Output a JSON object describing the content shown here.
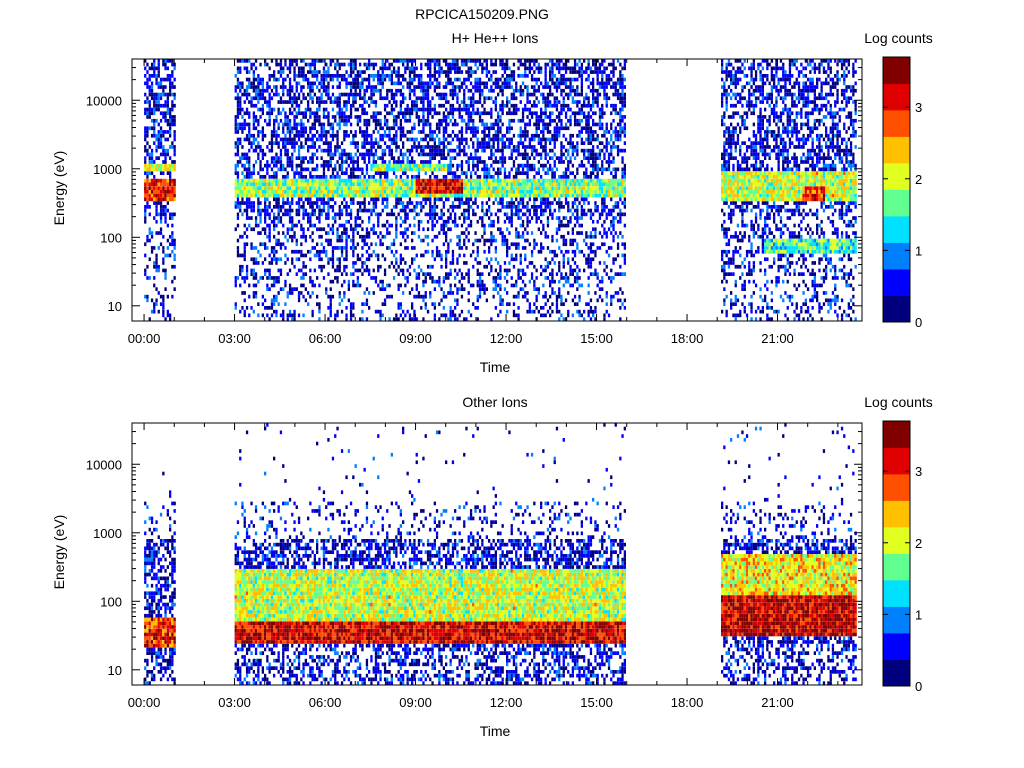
{
  "figure_title": "RPCICA150209.PNG",
  "colors": {
    "colormap": [
      "#00007f",
      "#0000ff",
      "#0080ff",
      "#00e0ff",
      "#60ff90",
      "#e0ff20",
      "#ffc000",
      "#ff5000",
      "#e00000",
      "#800000"
    ]
  },
  "chart_data": [
    {
      "type": "heatmap",
      "title": "H+ He++ Ions",
      "xlabel": "Time",
      "ylabel": "Energy (eV)",
      "x_ticks": [
        "00:00",
        "03:00",
        "06:00",
        "09:00",
        "12:00",
        "15:00",
        "18:00",
        "21:00"
      ],
      "x_range_hours": [
        -0.4,
        23.8
      ],
      "y_scale": "log",
      "y_ticks": [
        "10",
        "100",
        "1000",
        "10000"
      ],
      "y_range": [
        6,
        40000
      ],
      "colorbar": {
        "label": "Log counts",
        "ticks": [
          "0",
          "1",
          "2",
          "3"
        ],
        "range": [
          0,
          3.7
        ]
      },
      "data_gaps_hours": [
        [
          1.0,
          3.0
        ],
        [
          15.9,
          19.1
        ]
      ],
      "features": [
        {
          "name": "dense band",
          "time_hours": [
            0.0,
            1.0
          ],
          "energy_ev": [
            350,
            700
          ],
          "level": 3.0
        },
        {
          "name": "dense band",
          "time_hours": [
            0.0,
            1.0
          ],
          "energy_ev": [
            900,
            1200
          ],
          "level": 2.0
        },
        {
          "name": "main band",
          "time_hours": [
            3.0,
            15.9
          ],
          "energy_ev": [
            400,
            700
          ],
          "level": 1.8
        },
        {
          "name": "main band peak",
          "time_hours": [
            9.0,
            10.5
          ],
          "energy_ev": [
            450,
            700
          ],
          "level": 3.2
        },
        {
          "name": "upper band",
          "time_hours": [
            7.5,
            10.0
          ],
          "energy_ev": [
            900,
            1200
          ],
          "level": 1.8
        },
        {
          "name": "main band",
          "time_hours": [
            19.1,
            23.6
          ],
          "energy_ev": [
            350,
            900
          ],
          "level": 2.0
        },
        {
          "name": "main band peak",
          "time_hours": [
            21.8,
            22.5
          ],
          "energy_ev": [
            350,
            550
          ],
          "level": 3.0
        },
        {
          "name": "low band",
          "time_hours": [
            20.5,
            23.6
          ],
          "energy_ev": [
            60,
            100
          ],
          "level": 1.5
        }
      ]
    },
    {
      "type": "heatmap",
      "title": "Other Ions",
      "xlabel": "Time",
      "ylabel": "Energy (eV)",
      "x_ticks": [
        "00:00",
        "03:00",
        "06:00",
        "09:00",
        "12:00",
        "15:00",
        "18:00",
        "21:00"
      ],
      "x_range_hours": [
        -0.4,
        23.8
      ],
      "y_scale": "log",
      "y_ticks": [
        "10",
        "100",
        "1000",
        "10000"
      ],
      "y_range": [
        6,
        40000
      ],
      "colorbar": {
        "label": "Log counts",
        "ticks": [
          "0",
          "1",
          "2",
          "3"
        ],
        "range": [
          0,
          3.7
        ]
      },
      "data_gaps_hours": [
        [
          1.0,
          3.0
        ],
        [
          15.9,
          19.1
        ]
      ],
      "features": [
        {
          "name": "low-energy band",
          "time_hours": [
            0.0,
            1.0
          ],
          "energy_ev": [
            20,
            60
          ],
          "level": 3.0
        },
        {
          "name": "low-energy band",
          "time_hours": [
            3.0,
            15.9
          ],
          "energy_ev": [
            25,
            50
          ],
          "level": 3.2
        },
        {
          "name": "broad band",
          "time_hours": [
            3.0,
            15.9
          ],
          "energy_ev": [
            50,
            300
          ],
          "level": 2.0
        },
        {
          "name": "low-energy band",
          "time_hours": [
            19.1,
            23.6
          ],
          "energy_ev": [
            30,
            120
          ],
          "level": 3.3
        },
        {
          "name": "broad band",
          "time_hours": [
            19.1,
            23.6
          ],
          "energy_ev": [
            120,
            500
          ],
          "level": 2.2
        }
      ]
    }
  ]
}
